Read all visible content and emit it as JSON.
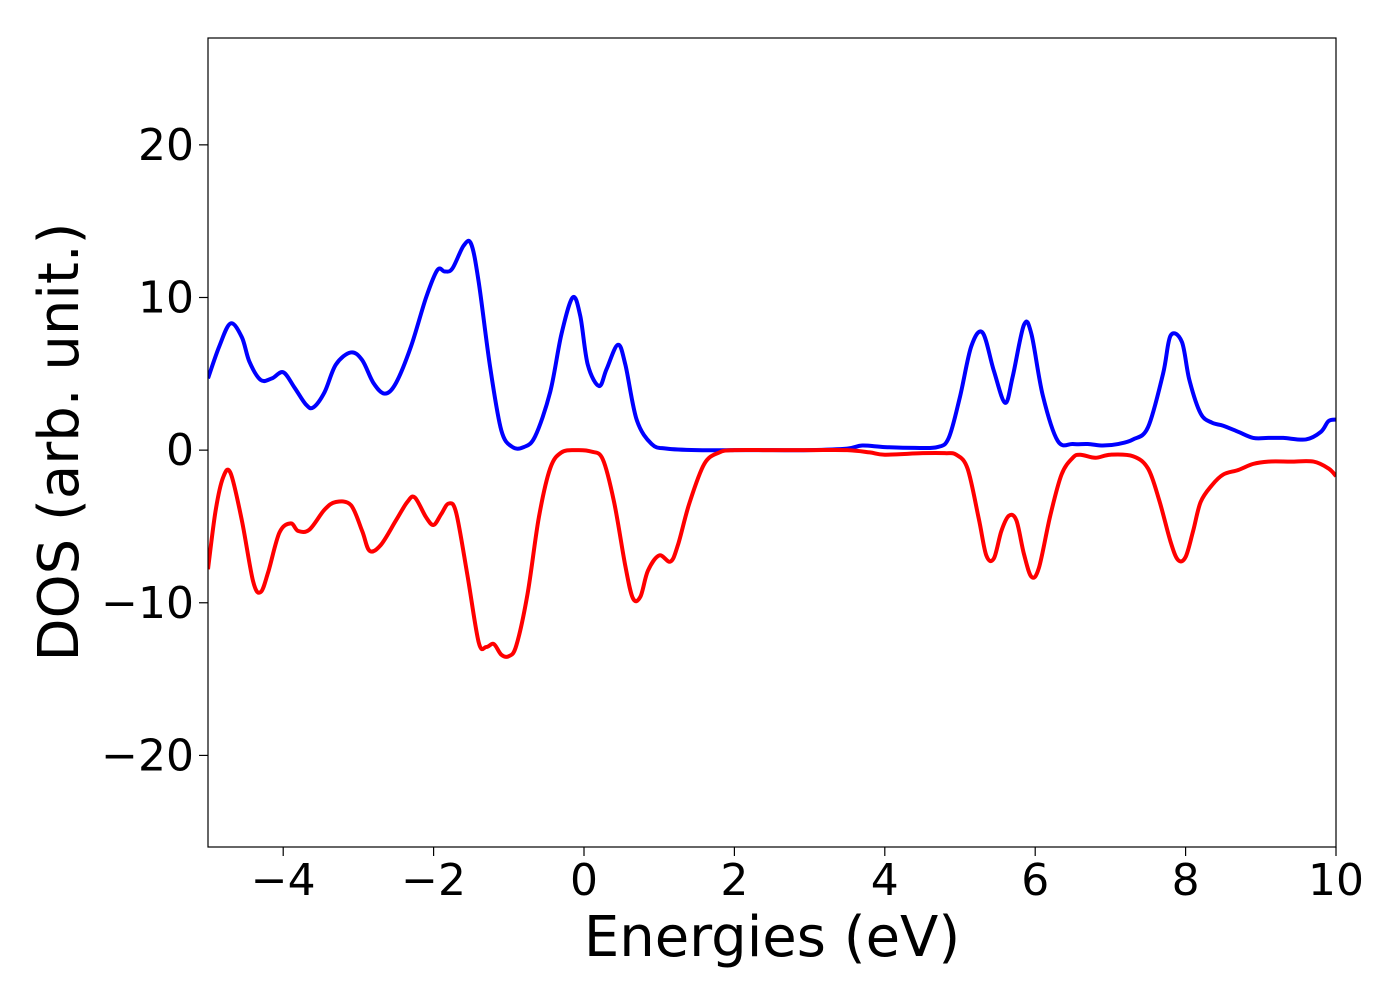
{
  "chart_data": {
    "type": "line",
    "xlabel": "Energies (eV)",
    "ylabel": "DOS (arb. unit.)",
    "xlim": [
      -5,
      10
    ],
    "ylim": [
      -26,
      27
    ],
    "xticks": [
      -4,
      -2,
      0,
      2,
      4,
      6,
      8,
      10
    ],
    "xtick_labels": [
      "−4",
      "−2",
      "0",
      "2",
      "4",
      "6",
      "8",
      "10"
    ],
    "yticks": [
      -20,
      -10,
      0,
      10,
      20
    ],
    "ytick_labels": [
      "−20",
      "−10",
      "0",
      "10",
      "20"
    ],
    "grid": false,
    "legend": "none",
    "series": [
      {
        "color": "#0000ff",
        "x": [
          -5.0,
          -4.85,
          -4.7,
          -4.55,
          -4.45,
          -4.3,
          -4.15,
          -4.0,
          -3.85,
          -3.7,
          -3.6,
          -3.45,
          -3.3,
          -3.1,
          -2.95,
          -2.8,
          -2.65,
          -2.5,
          -2.3,
          -2.1,
          -1.95,
          -1.85,
          -1.75,
          -1.6,
          -1.5,
          -1.4,
          -1.25,
          -1.1,
          -0.95,
          -0.8,
          -0.65,
          -0.45,
          -0.3,
          -0.15,
          -0.05,
          0.05,
          0.2,
          0.3,
          0.45,
          0.55,
          0.7,
          0.9,
          1.1,
          1.5,
          2.0,
          2.5,
          3.0,
          3.5,
          3.7,
          4.0,
          4.4,
          4.7,
          4.85,
          5.0,
          5.15,
          5.3,
          5.45,
          5.6,
          5.7,
          5.85,
          5.95,
          6.1,
          6.3,
          6.5,
          6.7,
          6.9,
          7.1,
          7.3,
          7.5,
          7.7,
          7.8,
          7.95,
          8.05,
          8.2,
          8.35,
          8.5,
          8.7,
          8.9,
          9.1,
          9.3,
          9.6,
          9.8,
          9.9,
          10.0
        ],
        "y": [
          4.7,
          6.8,
          8.3,
          7.4,
          5.8,
          4.6,
          4.7,
          5.1,
          4.1,
          3.0,
          2.8,
          3.8,
          5.6,
          6.4,
          5.9,
          4.4,
          3.7,
          4.4,
          6.8,
          10.0,
          11.8,
          11.7,
          11.9,
          13.4,
          13.5,
          11.0,
          5.5,
          1.3,
          0.2,
          0.2,
          0.9,
          3.8,
          7.6,
          10.0,
          8.8,
          5.6,
          4.2,
          5.3,
          6.9,
          5.6,
          2.0,
          0.4,
          0.1,
          0.0,
          0.0,
          0.0,
          0.0,
          0.1,
          0.3,
          0.2,
          0.15,
          0.2,
          0.8,
          3.5,
          6.8,
          7.7,
          5.2,
          3.1,
          4.8,
          8.2,
          7.6,
          3.6,
          0.6,
          0.4,
          0.4,
          0.3,
          0.4,
          0.7,
          1.5,
          5.0,
          7.5,
          7.1,
          4.6,
          2.4,
          1.8,
          1.6,
          1.2,
          0.8,
          0.8,
          0.8,
          0.7,
          1.2,
          1.9,
          2.0
        ]
      },
      {
        "color": "#ff0000",
        "x": [
          -5.0,
          -4.9,
          -4.8,
          -4.7,
          -4.55,
          -4.4,
          -4.3,
          -4.2,
          -4.05,
          -3.9,
          -3.8,
          -3.65,
          -3.45,
          -3.3,
          -3.1,
          -2.95,
          -2.85,
          -2.7,
          -2.5,
          -2.35,
          -2.25,
          -2.1,
          -2.0,
          -1.9,
          -1.8,
          -1.7,
          -1.55,
          -1.4,
          -1.3,
          -1.2,
          -1.1,
          -1.0,
          -0.9,
          -0.75,
          -0.6,
          -0.45,
          -0.3,
          -0.1,
          0.1,
          0.25,
          0.4,
          0.55,
          0.65,
          0.75,
          0.85,
          1.0,
          1.15,
          1.25,
          1.4,
          1.6,
          1.8,
          2.0,
          2.5,
          3.0,
          3.5,
          3.8,
          4.0,
          4.5,
          4.8,
          4.95,
          5.1,
          5.25,
          5.35,
          5.45,
          5.55,
          5.65,
          5.75,
          5.85,
          5.95,
          6.05,
          6.2,
          6.35,
          6.5,
          6.6,
          6.8,
          7.0,
          7.3,
          7.5,
          7.65,
          7.8,
          7.9,
          8.0,
          8.1,
          8.2,
          8.35,
          8.5,
          8.7,
          8.9,
          9.1,
          9.4,
          9.7,
          9.9,
          10.0
        ],
        "y": [
          -7.8,
          -4.0,
          -1.8,
          -1.5,
          -4.6,
          -8.6,
          -9.3,
          -8.0,
          -5.4,
          -4.8,
          -5.3,
          -5.2,
          -3.9,
          -3.4,
          -3.6,
          -5.3,
          -6.6,
          -6.2,
          -4.6,
          -3.4,
          -3.1,
          -4.4,
          -4.9,
          -4.2,
          -3.5,
          -4.1,
          -8.2,
          -12.6,
          -12.9,
          -12.7,
          -13.4,
          -13.5,
          -12.8,
          -9.4,
          -4.4,
          -1.2,
          -0.15,
          0.0,
          -0.1,
          -0.6,
          -3.4,
          -7.6,
          -9.7,
          -9.6,
          -7.9,
          -6.9,
          -7.3,
          -6.2,
          -3.5,
          -0.9,
          -0.15,
          0.0,
          0.0,
          0.0,
          0.0,
          -0.15,
          -0.3,
          -0.2,
          -0.2,
          -0.3,
          -1.2,
          -4.5,
          -6.9,
          -7.1,
          -5.3,
          -4.3,
          -4.6,
          -6.8,
          -8.3,
          -7.7,
          -4.3,
          -1.6,
          -0.5,
          -0.3,
          -0.5,
          -0.3,
          -0.4,
          -1.2,
          -3.3,
          -6.0,
          -7.2,
          -7.0,
          -5.3,
          -3.4,
          -2.3,
          -1.6,
          -1.3,
          -0.9,
          -0.75,
          -0.75,
          -0.75,
          -1.2,
          -1.7
        ]
      }
    ]
  }
}
